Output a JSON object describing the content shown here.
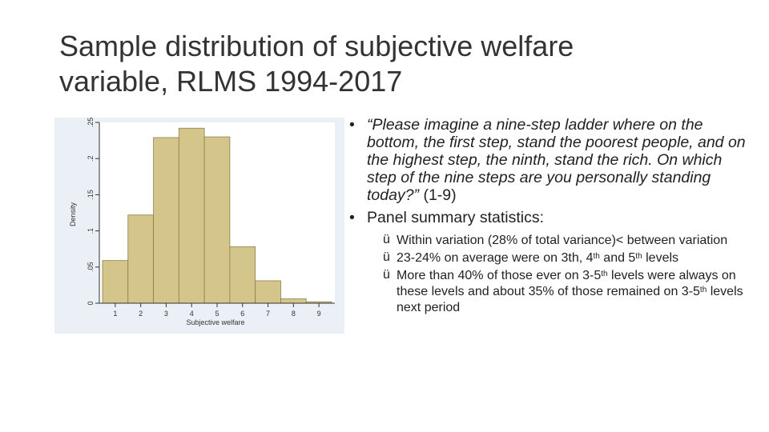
{
  "slide": {
    "title_line1": "Sample distribution of subjective welfare",
    "title_line2": "variable, RLMS 1994-2017"
  },
  "chart_data": {
    "type": "bar",
    "categories": [
      "1",
      "2",
      "3",
      "4",
      "5",
      "6",
      "7",
      "8",
      "9"
    ],
    "values": [
      0.059,
      0.122,
      0.229,
      0.242,
      0.23,
      0.078,
      0.031,
      0.006,
      0.002
    ],
    "xlabel": "Subjective welfare",
    "ylabel": "Density",
    "ylim": [
      0,
      0.25
    ],
    "yticks": [
      0,
      0.05,
      0.1,
      0.15,
      0.2,
      0.25
    ],
    "ytick_labels": [
      "0",
      ".05",
      ".1",
      ".15",
      ".2",
      ".25"
    ],
    "xticks": [
      "1",
      "2",
      "3",
      "4",
      "5",
      "6",
      "7",
      "8",
      "9"
    ],
    "bar_color": "#d4c68a",
    "bar_edge_color": "#8a7f4e",
    "grid": false
  },
  "bullets": [
    {
      "marker": "•",
      "style": "italic",
      "text": "“Please imagine a nine-step ladder where on the bottom, the first step, stand the poorest people, and on the highest step, the ninth, stand the rich. On which step of the nine steps are you personally standing today?”",
      "tail": " (1-9)"
    },
    {
      "marker": "•",
      "text": "Panel summary statistics:",
      "sub": [
        {
          "marker": "ü",
          "parts": [
            "Within variation (28% of total variance)< between variation"
          ]
        },
        {
          "marker": "ü",
          "parts": [
            "23-24% on average were on 3th, 4",
            "th",
            " and 5",
            "th",
            " levels"
          ]
        },
        {
          "marker": "ü",
          "parts": [
            "More than 40% of those ever on 3-5",
            "th",
            " levels were always on these levels and about 35% of those remained on 3-5",
            "th",
            " levels next period"
          ]
        }
      ]
    }
  ]
}
